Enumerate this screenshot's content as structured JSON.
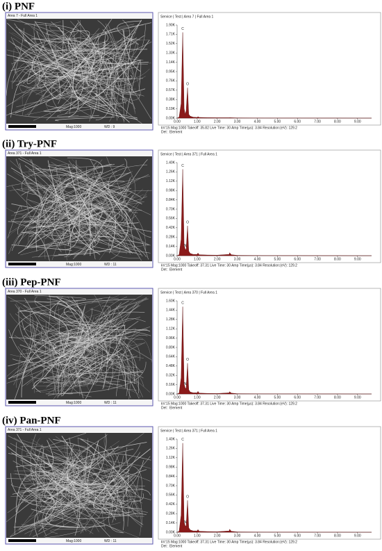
{
  "panels": [
    {
      "label": "(i) PNF",
      "sem": {
        "title": "Area 7 - Full Area 1",
        "mag": "Mag:1000",
        "wd": "WD : 9"
      }
    },
    {
      "label": "(ii) Try-PNF",
      "sem": {
        "title": "Area 371 - Full Area 1",
        "mag": "Mag:1000",
        "wd": "WD : 11"
      }
    },
    {
      "label": "(iii) Pep-PNF",
      "sem": {
        "title": "Area 370 - Full Area 1",
        "mag": "Mag:1000",
        "wd": "WD : 11"
      }
    },
    {
      "label": "(iv) Pan-PNF",
      "sem": {
        "title": "Area 371 - Full Area 1",
        "mag": "Mag:1000",
        "wd": "WD : 11"
      }
    }
  ],
  "chart_data": [
    {
      "type": "area",
      "title": "Service | Test | Area 7 | Full Area 1",
      "footer": [
        "kV:15    Mag:1000    Takeoff: 35.82    Live Time: 30    Amp Time(µs): 3.84    Resolution:(eV): 129.2",
        "Det : Element"
      ],
      "color": "#8b1a1a",
      "x": [
        0,
        0.1,
        0.2,
        0.28,
        0.35,
        0.4,
        0.45,
        0.52,
        0.58,
        0.65,
        0.8,
        1.0,
        1.04,
        1.1,
        1.5,
        2.0,
        2.6,
        2.62,
        2.7,
        3.0,
        4.0,
        5.0,
        6.0,
        7.0,
        8.0,
        9.0,
        9.7
      ],
      "values": [
        0,
        20,
        300,
        1750,
        200,
        80,
        150,
        620,
        80,
        40,
        20,
        15,
        30,
        15,
        10,
        8,
        8,
        10,
        8,
        5,
        3,
        2,
        2,
        1,
        1,
        0,
        0
      ],
      "annotations": [
        {
          "text": "C",
          "x": 0.28,
          "y": 1750
        },
        {
          "text": "O",
          "x": 0.52,
          "y": 620
        }
      ],
      "xlim": [
        0,
        9.7
      ],
      "ylim": [
        0,
        1900
      ],
      "xticks": [
        {
          "value": 0,
          "label": "0.00"
        },
        {
          "value": 1,
          "label": "1.00"
        },
        {
          "value": 2,
          "label": "2.00"
        },
        {
          "value": 3,
          "label": "3.00"
        },
        {
          "value": 4,
          "label": "4.00"
        },
        {
          "value": 5,
          "label": "5.00"
        },
        {
          "value": 6,
          "label": "6.00"
        },
        {
          "value": 7,
          "label": "7.00"
        },
        {
          "value": 8,
          "label": "8.00"
        },
        {
          "value": 9,
          "label": "9.00"
        }
      ],
      "yticks": [
        {
          "value": 0,
          "label": "0.00K"
        },
        {
          "value": 190,
          "label": "0.19K"
        },
        {
          "value": 380,
          "label": "0.38K"
        },
        {
          "value": 570,
          "label": "0.57K"
        },
        {
          "value": 760,
          "label": "0.76K"
        },
        {
          "value": 950,
          "label": "0.95K"
        },
        {
          "value": 1140,
          "label": "1.14K"
        },
        {
          "value": 1330,
          "label": "1.33K"
        },
        {
          "value": 1520,
          "label": "1.52K"
        },
        {
          "value": 1710,
          "label": "1.71K"
        },
        {
          "value": 1900,
          "label": "1.90K"
        }
      ]
    },
    {
      "type": "area",
      "title": "Service | Test | Area 371 | Full Area 1",
      "footer": [
        "kV:15    Mag:1000    Takeoff: 37.31    Live Time: 30    Amp Time(µs): 3.84    Resolution:(eV): 129.2",
        "Det : Element"
      ],
      "color": "#8b1a1a",
      "x": [
        0,
        0.1,
        0.2,
        0.28,
        0.35,
        0.4,
        0.45,
        0.52,
        0.58,
        0.65,
        0.8,
        1.0,
        1.04,
        1.1,
        1.5,
        2.0,
        2.6,
        2.62,
        2.7,
        3.0,
        4.0,
        5.0,
        6.0,
        7.0,
        8.0,
        9.0,
        9.7
      ],
      "values": [
        0,
        15,
        250,
        1300,
        160,
        100,
        90,
        450,
        70,
        35,
        20,
        20,
        40,
        15,
        10,
        8,
        20,
        45,
        15,
        5,
        3,
        2,
        2,
        1,
        1,
        0,
        0
      ],
      "annotations": [
        {
          "text": "C",
          "x": 0.28,
          "y": 1300
        },
        {
          "text": "N",
          "x": 0.4,
          "y": 100
        },
        {
          "text": "O",
          "x": 0.52,
          "y": 450
        }
      ],
      "xlim": [
        0,
        9.7
      ],
      "ylim": [
        0,
        1400
      ],
      "xticks": [
        {
          "value": 0,
          "label": "0.00"
        },
        {
          "value": 1,
          "label": "1.00"
        },
        {
          "value": 2,
          "label": "2.00"
        },
        {
          "value": 3,
          "label": "3.00"
        },
        {
          "value": 4,
          "label": "4.00"
        },
        {
          "value": 5,
          "label": "5.00"
        },
        {
          "value": 6,
          "label": "6.00"
        },
        {
          "value": 7,
          "label": "7.00"
        },
        {
          "value": 8,
          "label": "8.00"
        },
        {
          "value": 9,
          "label": "9.00"
        }
      ],
      "yticks": [
        {
          "value": 0,
          "label": "0.00K"
        },
        {
          "value": 140,
          "label": "0.14K"
        },
        {
          "value": 280,
          "label": "0.28K"
        },
        {
          "value": 420,
          "label": "0.42K"
        },
        {
          "value": 560,
          "label": "0.56K"
        },
        {
          "value": 700,
          "label": "0.70K"
        },
        {
          "value": 840,
          "label": "0.84K"
        },
        {
          "value": 980,
          "label": "0.98K"
        },
        {
          "value": 1120,
          "label": "1.12K"
        },
        {
          "value": 1260,
          "label": "1.26K"
        },
        {
          "value": 1400,
          "label": "1.40K"
        }
      ]
    },
    {
      "type": "area",
      "title": "Service | Test | Area 370 | Full Area 1",
      "footer": [
        "kV:15    Mag:1000    Takeoff: 37.31    Live Time: 30    Amp Time(µs): 3.84    Resolution:(eV): 129.2",
        "Det : Element"
      ],
      "color": "#8b1a1a",
      "x": [
        0,
        0.1,
        0.2,
        0.28,
        0.35,
        0.4,
        0.45,
        0.52,
        0.58,
        0.65,
        0.8,
        1.0,
        1.04,
        1.1,
        1.5,
        2.0,
        2.6,
        2.62,
        2.7,
        3.0,
        4.0,
        5.0,
        6.0,
        7.0,
        8.0,
        9.0,
        9.7
      ],
      "values": [
        0,
        15,
        280,
        1500,
        170,
        110,
        90,
        530,
        75,
        35,
        20,
        20,
        45,
        15,
        10,
        8,
        20,
        40,
        15,
        5,
        3,
        2,
        2,
        1,
        1,
        0,
        0
      ],
      "annotations": [
        {
          "text": "C",
          "x": 0.28,
          "y": 1500
        },
        {
          "text": "N",
          "x": 0.4,
          "y": 110
        },
        {
          "text": "O",
          "x": 0.52,
          "y": 530
        }
      ],
      "xlim": [
        0,
        9.7
      ],
      "ylim": [
        0,
        1600
      ],
      "xticks": [
        {
          "value": 0,
          "label": "0.00"
        },
        {
          "value": 1,
          "label": "1.00"
        },
        {
          "value": 2,
          "label": "2.00"
        },
        {
          "value": 3,
          "label": "3.00"
        },
        {
          "value": 4,
          "label": "4.00"
        },
        {
          "value": 5,
          "label": "5.00"
        },
        {
          "value": 6,
          "label": "6.00"
        },
        {
          "value": 7,
          "label": "7.00"
        },
        {
          "value": 8,
          "label": "8.00"
        },
        {
          "value": 9,
          "label": "9.00"
        }
      ],
      "yticks": [
        {
          "value": 0,
          "label": "0.00K"
        },
        {
          "value": 160,
          "label": "0.16K"
        },
        {
          "value": 320,
          "label": "0.32K"
        },
        {
          "value": 480,
          "label": "0.48K"
        },
        {
          "value": 640,
          "label": "0.64K"
        },
        {
          "value": 800,
          "label": "0.80K"
        },
        {
          "value": 960,
          "label": "0.96K"
        },
        {
          "value": 1120,
          "label": "1.12K"
        },
        {
          "value": 1280,
          "label": "1.28K"
        },
        {
          "value": 1440,
          "label": "1.44K"
        },
        {
          "value": 1600,
          "label": "1.60K"
        }
      ]
    },
    {
      "type": "area",
      "title": "Service | Test | Area 371 | Full Area 1",
      "footer": [
        "kV:15    Mag:1000    Takeoff: 37.31    Live Time: 30    Amp Time(µs): 3.84    Resolution:(eV): 129.2",
        "Det : Element"
      ],
      "color": "#8b1a1a",
      "x": [
        0,
        0.1,
        0.2,
        0.28,
        0.35,
        0.4,
        0.45,
        0.52,
        0.58,
        0.65,
        0.8,
        1.0,
        1.04,
        1.1,
        1.5,
        2.0,
        2.6,
        2.62,
        2.7,
        3.0,
        4.0,
        5.0,
        6.0,
        7.0,
        8.0,
        9.0,
        9.7
      ],
      "values": [
        0,
        15,
        260,
        1340,
        160,
        100,
        90,
        480,
        70,
        35,
        20,
        20,
        40,
        15,
        10,
        8,
        20,
        45,
        15,
        5,
        3,
        2,
        2,
        1,
        1,
        0,
        0
      ],
      "annotations": [
        {
          "text": "C",
          "x": 0.28,
          "y": 1340
        },
        {
          "text": "N",
          "x": 0.4,
          "y": 100
        },
        {
          "text": "O",
          "x": 0.52,
          "y": 480
        }
      ],
      "xlim": [
        0,
        9.7
      ],
      "ylim": [
        0,
        1400
      ],
      "xticks": [
        {
          "value": 0,
          "label": "0.00"
        },
        {
          "value": 1,
          "label": "1.00"
        },
        {
          "value": 2,
          "label": "2.00"
        },
        {
          "value": 3,
          "label": "3.00"
        },
        {
          "value": 4,
          "label": "4.00"
        },
        {
          "value": 5,
          "label": "5.00"
        },
        {
          "value": 6,
          "label": "6.00"
        },
        {
          "value": 7,
          "label": "7.00"
        },
        {
          "value": 8,
          "label": "8.00"
        },
        {
          "value": 9,
          "label": "9.00"
        }
      ],
      "yticks": [
        {
          "value": 0,
          "label": "0.00K"
        },
        {
          "value": 140,
          "label": "0.14K"
        },
        {
          "value": 280,
          "label": "0.28K"
        },
        {
          "value": 420,
          "label": "0.42K"
        },
        {
          "value": 560,
          "label": "0.56K"
        },
        {
          "value": 700,
          "label": "0.70K"
        },
        {
          "value": 840,
          "label": "0.84K"
        },
        {
          "value": 980,
          "label": "0.98K"
        },
        {
          "value": 1120,
          "label": "1.12K"
        },
        {
          "value": 1260,
          "label": "1.26K"
        },
        {
          "value": 1400,
          "label": "1.40K"
        }
      ]
    }
  ]
}
